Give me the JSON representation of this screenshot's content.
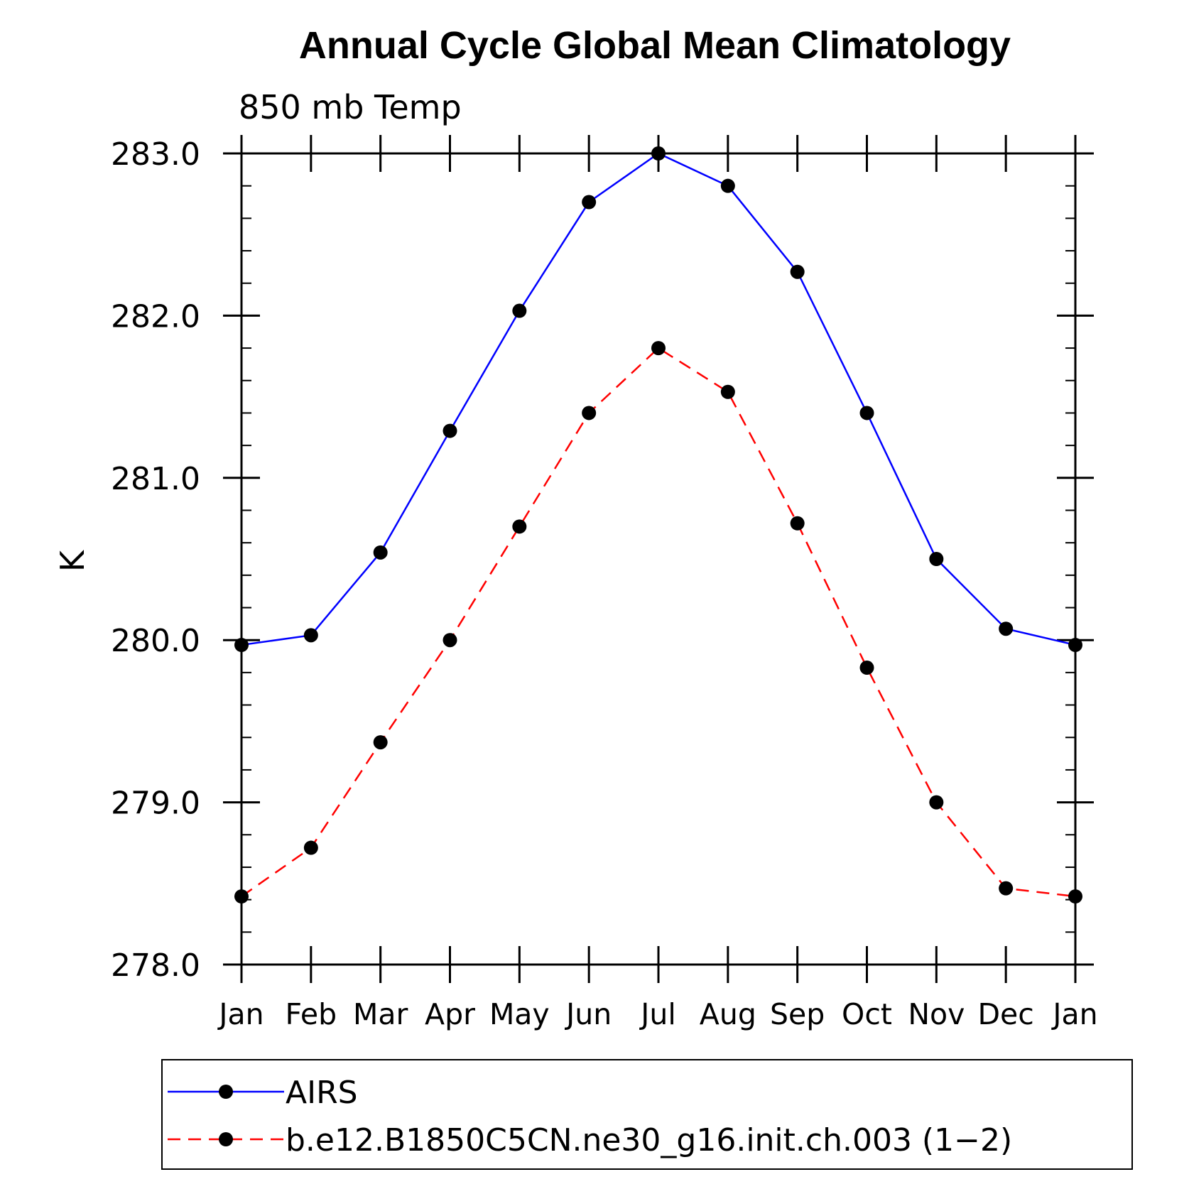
{
  "chart_data": {
    "type": "line",
    "title": "Annual Cycle Global Mean Climatology",
    "subtitle": "850 mb Temp",
    "xlabel": "",
    "ylabel": "K",
    "categories": [
      "Jan",
      "Feb",
      "Mar",
      "Apr",
      "May",
      "Jun",
      "Jul",
      "Aug",
      "Sep",
      "Oct",
      "Nov",
      "Dec",
      "Jan"
    ],
    "ylim": [
      278.0,
      283.0
    ],
    "yticks": [
      "278.0",
      "279.0",
      "280.0",
      "281.0",
      "282.0",
      "283.0"
    ],
    "legend_position": "bottom",
    "grid": false,
    "series": [
      {
        "name": "AIRS",
        "color": "#0000ff",
        "line_style": "solid",
        "marker": "filled-circle",
        "values": [
          279.97,
          280.03,
          280.54,
          281.29,
          282.03,
          282.7,
          283.0,
          282.8,
          282.27,
          281.4,
          280.5,
          280.07,
          279.97
        ]
      },
      {
        "name": "b.e12.B1850C5CN.ne30_g16.init.ch.003 (1−2)",
        "color": "#ff0000",
        "line_style": "dashed",
        "marker": "filled-circle",
        "values": [
          278.42,
          278.72,
          279.37,
          280.0,
          280.7,
          281.4,
          281.8,
          281.53,
          280.72,
          279.83,
          279.0,
          278.47,
          278.42
        ]
      }
    ]
  }
}
